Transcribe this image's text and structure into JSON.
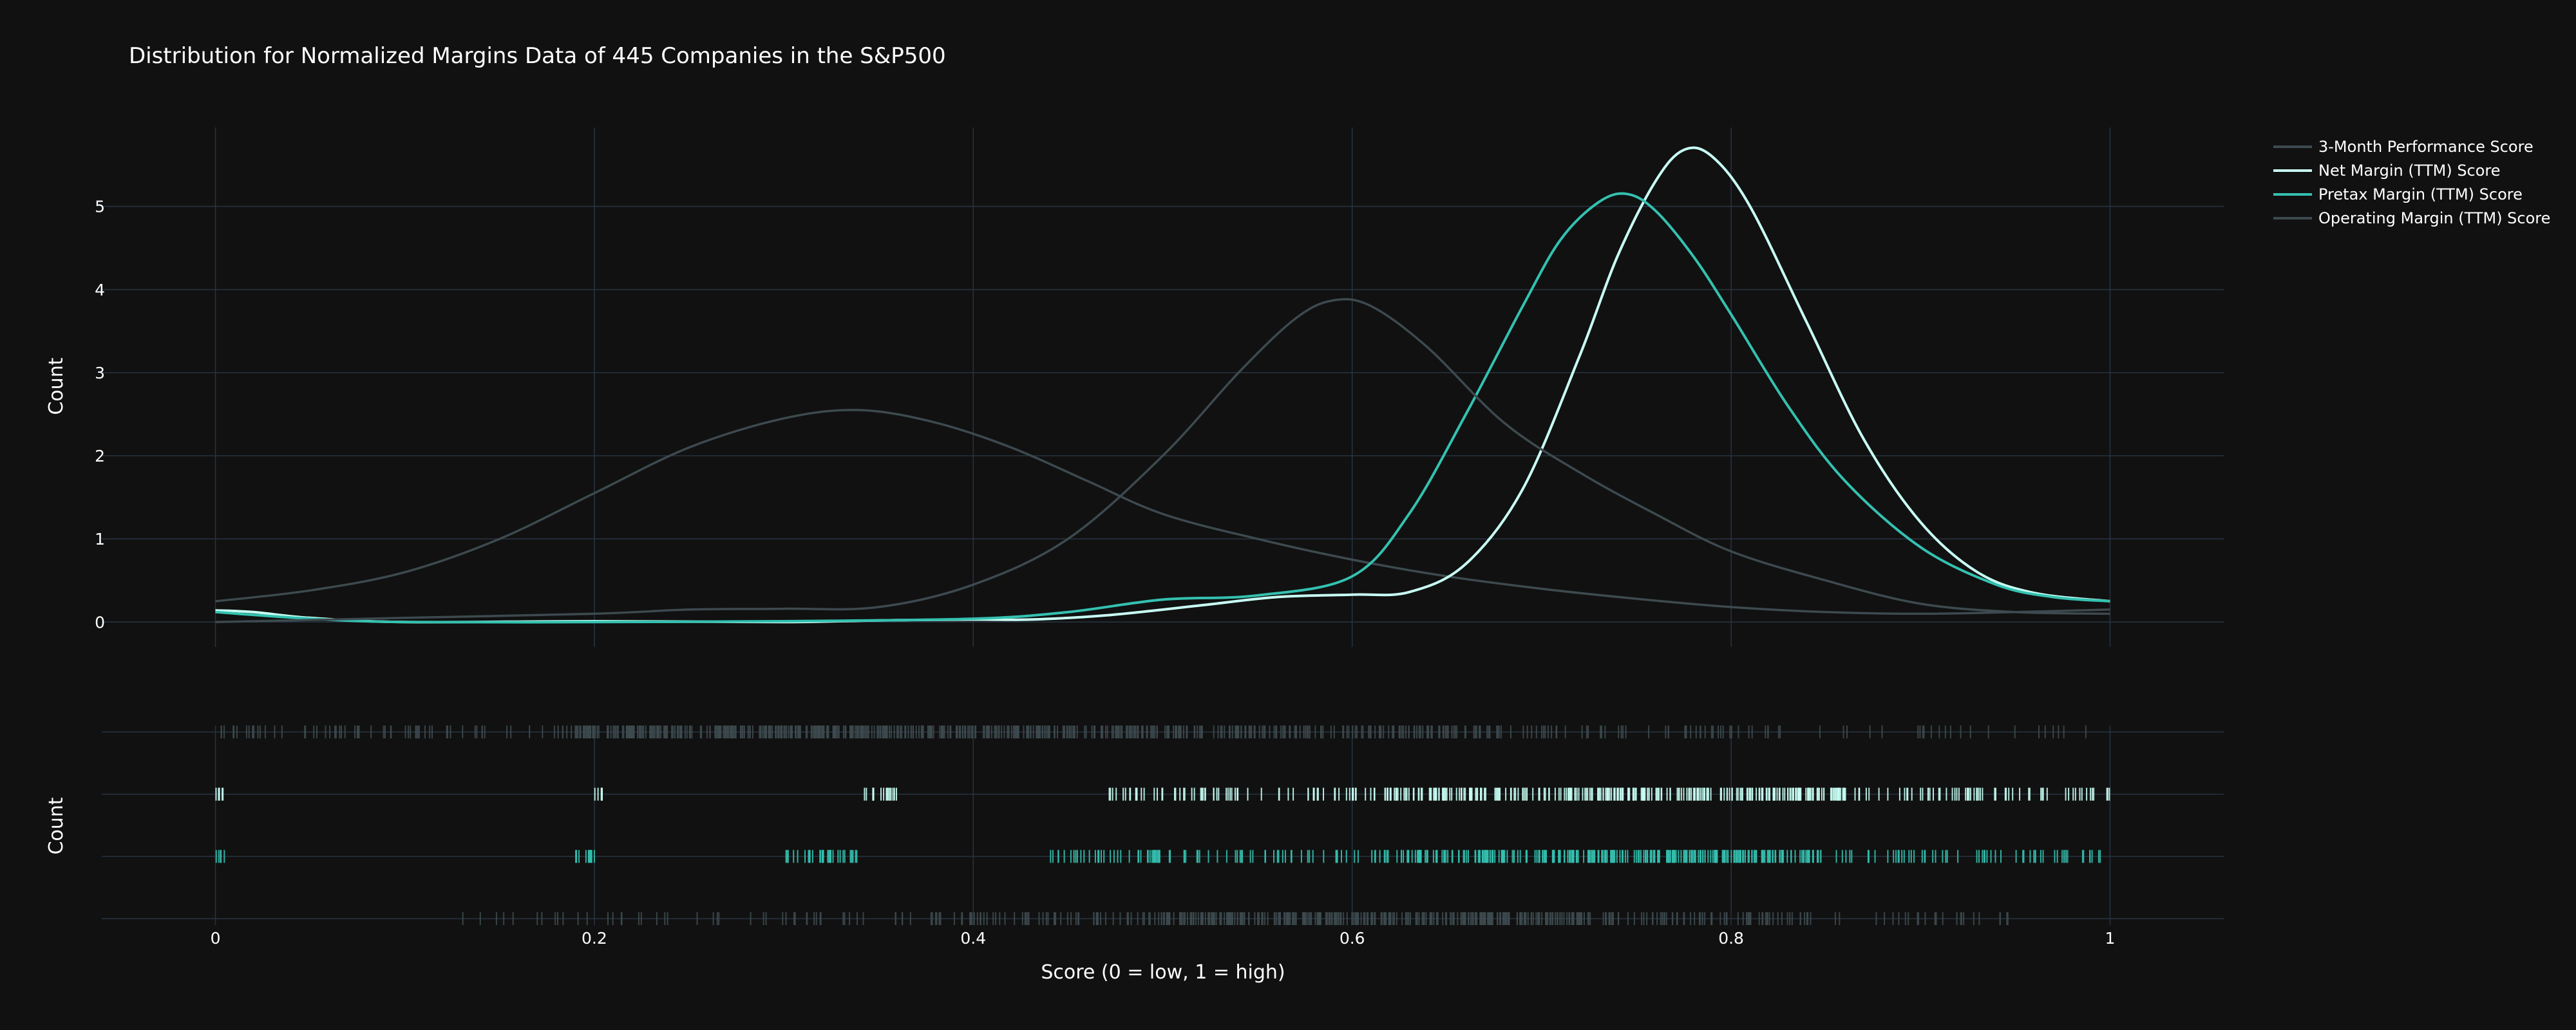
{
  "chart_data": {
    "type": "line",
    "title": "Distribution for Normalized Margins Data of 445 Companies in the S&P500",
    "xlabel": "Score (0 = low, 1 = high)",
    "ylabel": "Count",
    "rug_ylabel": "Count",
    "xlim": [
      -0.06,
      1.06
    ],
    "ylim": [
      -0.3,
      5.95
    ],
    "x_ticks": [
      "0",
      "0.2",
      "0.4",
      "0.6",
      "0.8",
      "1"
    ],
    "y_ticks": [
      "0",
      "1",
      "2",
      "3",
      "4",
      "5"
    ],
    "grid": true,
    "legend_position": "top-right",
    "series": [
      {
        "name": "3-Month Performance Score",
        "color": "#3d4a4f",
        "x": [
          0,
          0.05,
          0.1,
          0.15,
          0.2,
          0.25,
          0.3,
          0.34,
          0.38,
          0.42,
          0.46,
          0.5,
          0.55,
          0.6,
          0.65,
          0.7,
          0.75,
          0.8,
          0.85,
          0.9,
          0.95,
          1
        ],
        "y": [
          0.25,
          0.38,
          0.6,
          1.0,
          1.55,
          2.1,
          2.45,
          2.55,
          2.4,
          2.1,
          1.7,
          1.3,
          1.0,
          0.75,
          0.55,
          0.4,
          0.28,
          0.18,
          0.12,
          0.1,
          0.12,
          0.15
        ]
      },
      {
        "name": "Net Margin (TTM) Score",
        "color": "#c8fff4",
        "x": [
          0,
          0.02,
          0.05,
          0.1,
          0.2,
          0.3,
          0.35,
          0.4,
          0.43,
          0.47,
          0.52,
          0.56,
          0.6,
          0.63,
          0.66,
          0.69,
          0.72,
          0.74,
          0.76,
          0.775,
          0.79,
          0.81,
          0.84,
          0.87,
          0.9,
          0.93,
          0.96,
          1
        ],
        "y": [
          0.14,
          0.12,
          0.05,
          0.0,
          0.01,
          0.0,
          0.02,
          0.03,
          0.03,
          0.08,
          0.2,
          0.3,
          0.33,
          0.36,
          0.7,
          1.6,
          3.2,
          4.4,
          5.3,
          5.68,
          5.6,
          5.0,
          3.6,
          2.2,
          1.2,
          0.6,
          0.35,
          0.25
        ]
      },
      {
        "name": "Pretax Margin (TTM) Score",
        "color": "#34c1b0",
        "x": [
          0,
          0.05,
          0.1,
          0.2,
          0.3,
          0.4,
          0.45,
          0.5,
          0.55,
          0.6,
          0.63,
          0.66,
          0.69,
          0.71,
          0.73,
          0.745,
          0.76,
          0.78,
          0.8,
          0.83,
          0.86,
          0.9,
          0.94,
          0.97,
          1
        ],
        "y": [
          0.12,
          0.04,
          0.0,
          0.0,
          0.01,
          0.04,
          0.12,
          0.27,
          0.32,
          0.55,
          1.3,
          2.5,
          3.8,
          4.6,
          5.05,
          5.15,
          4.95,
          4.4,
          3.7,
          2.6,
          1.7,
          0.9,
          0.45,
          0.3,
          0.25
        ]
      },
      {
        "name": "Operating Margin (TTM) Score",
        "color": "#3d4a4f",
        "x": [
          0,
          0.1,
          0.2,
          0.25,
          0.3,
          0.35,
          0.4,
          0.45,
          0.5,
          0.54,
          0.57,
          0.59,
          0.61,
          0.64,
          0.68,
          0.72,
          0.76,
          0.8,
          0.85,
          0.9,
          0.95,
          1
        ],
        "y": [
          0.0,
          0.05,
          0.1,
          0.15,
          0.16,
          0.18,
          0.45,
          1.0,
          2.0,
          3.0,
          3.65,
          3.87,
          3.8,
          3.3,
          2.4,
          1.8,
          1.3,
          0.85,
          0.5,
          0.22,
          0.12,
          0.1
        ]
      }
    ],
    "rug": [
      {
        "name": "3-Month Performance Score",
        "color": "#3d4a4f",
        "density": [
          [
            0.0,
            0.04,
            0.3
          ],
          [
            0.04,
            0.19,
            0.25
          ],
          [
            0.19,
            0.52,
            1.0
          ],
          [
            0.52,
            0.68,
            0.6
          ],
          [
            0.68,
            0.83,
            0.25
          ],
          [
            0.83,
            1.0,
            0.1
          ]
        ]
      },
      {
        "name": "Net Margin (TTM) Score",
        "color": "#c8fff4",
        "density": [
          [
            0.0,
            0.005,
            0.9
          ],
          [
            0.2,
            0.205,
            0.9
          ],
          [
            0.34,
            0.36,
            0.6
          ],
          [
            0.47,
            0.6,
            0.35
          ],
          [
            0.6,
            0.72,
            0.75
          ],
          [
            0.72,
            0.86,
            1.0
          ],
          [
            0.86,
            1.0,
            0.35
          ]
        ]
      },
      {
        "name": "Pretax Margin (TTM) Score",
        "color": "#34c1b0",
        "density": [
          [
            0.0,
            0.005,
            0.9
          ],
          [
            0.19,
            0.2,
            0.9
          ],
          [
            0.3,
            0.34,
            0.6
          ],
          [
            0.44,
            0.61,
            0.35
          ],
          [
            0.61,
            0.67,
            0.7
          ],
          [
            0.67,
            0.85,
            1.0
          ],
          [
            0.85,
            1.0,
            0.3
          ]
        ]
      },
      {
        "name": "Operating Margin (TTM) Score",
        "color": "#3d4a4f",
        "density": [
          [
            0.13,
            0.38,
            0.15
          ],
          [
            0.38,
            0.5,
            0.4
          ],
          [
            0.5,
            0.74,
            1.0
          ],
          [
            0.74,
            0.83,
            0.45
          ],
          [
            0.83,
            0.95,
            0.2
          ]
        ]
      }
    ]
  }
}
